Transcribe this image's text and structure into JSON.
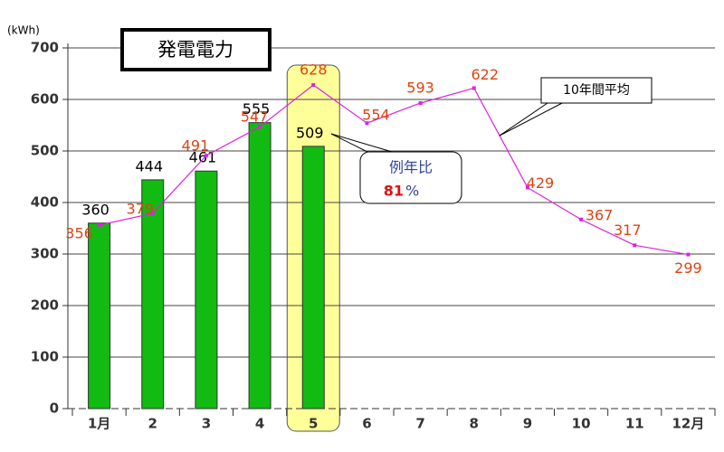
{
  "chart_data": {
    "type": "bar",
    "title": "発電電力",
    "y_unit": "(kWh)",
    "categories": [
      "1月",
      "2",
      "3",
      "4",
      "5",
      "6",
      "7",
      "8",
      "9",
      "10",
      "11",
      "12月"
    ],
    "series": [
      {
        "name": "発電電力",
        "type": "bar",
        "color": "#11bb11",
        "values": [
          360,
          444,
          461,
          555,
          509,
          null,
          null,
          null,
          null,
          null,
          null,
          null
        ]
      },
      {
        "name": "10年間平均",
        "type": "line",
        "color": "#dd22dd",
        "label_color": "#dd4411",
        "values": [
          356,
          379,
          491,
          547,
          628,
          554,
          593,
          622,
          429,
          367,
          317,
          299
        ]
      }
    ],
    "ylim": [
      0,
      700
    ],
    "yticks": [
      0,
      100,
      200,
      300,
      400,
      500,
      600,
      700
    ],
    "grid": true,
    "highlight_index": 4,
    "highlight_color": "#ffff99",
    "ratio": {
      "label": "例年比",
      "value": "81",
      "unit": "%"
    }
  }
}
